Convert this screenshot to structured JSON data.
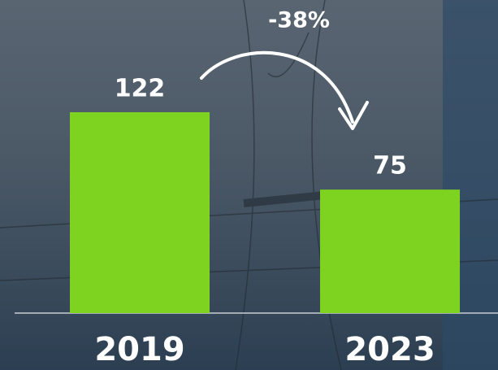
{
  "chart_data": {
    "type": "bar",
    "categories": [
      "2019",
      "2023"
    ],
    "values": [
      122,
      75
    ],
    "color": "#7ed321",
    "annotation": "-38%"
  }
}
